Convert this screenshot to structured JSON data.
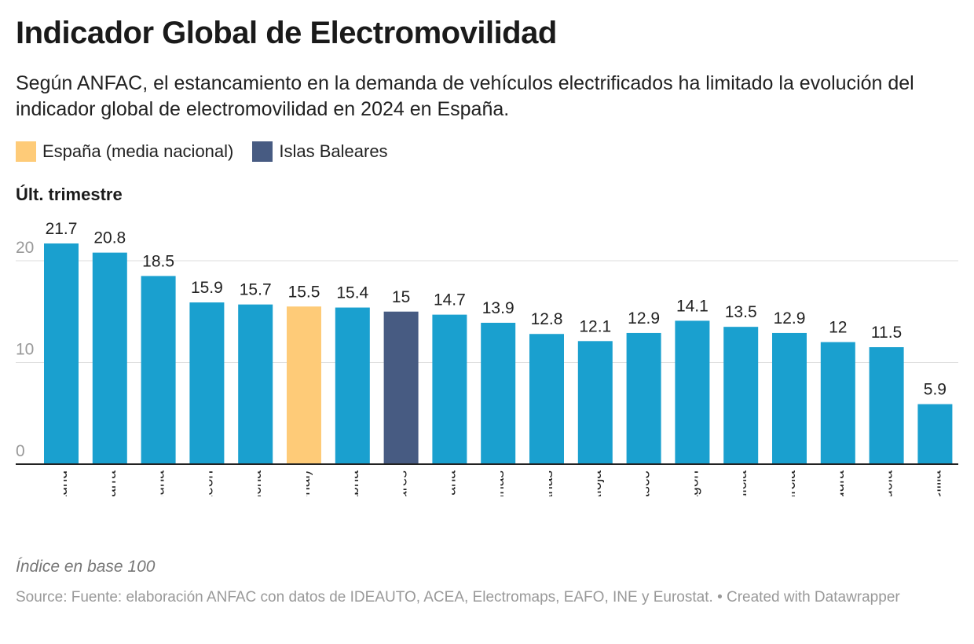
{
  "title": "Indicador Global de Electromovilidad",
  "subtitle": "Según ANFAC, el estancamiento en la demanda de vehículos electrificados ha limitado la evolución del indicador global de electromovilidad en 2024 en España.",
  "legend": [
    {
      "label": "España (media nacional)",
      "color": "#fecb78"
    },
    {
      "label": "Islas Baleares",
      "color": "#475b82"
    }
  ],
  "chart_label": "Últ. trimestre",
  "notes": "Índice en base 100",
  "footer": {
    "source": "Source: Fuente: elaboración ANFAC con datos de IDEAUTO, ACEA, Electromaps, EAFO, INE y Eurostat.",
    "credit": "• Created with Datawrapper"
  },
  "chart_data": {
    "type": "bar",
    "categories": [
      "Madrid",
      "Navarra",
      "Cataluña",
      "Castilla y León",
      "Castilla-La Mancha",
      "España (media nacional)",
      "Cantabria",
      "Islas Baleares",
      "Comunidad Valenciana",
      "Asturias",
      "Canarias",
      "La Rioja",
      "País Vasco",
      "Aragón",
      "Galicia",
      "Murcia",
      "Extremadura",
      "Andalucía",
      "Ceuta y Melilla"
    ],
    "visible_tick_labels": [
      "Madrid",
      "Navarra",
      "Cataluña",
      "a y León",
      "Mancha",
      "acional)",
      "antabria",
      "Baleares",
      "enciana",
      "Asturias",
      "Canarias",
      "La Rioja",
      "s Vasco",
      "Aragón",
      "Galicia",
      "Murcia",
      "emadura",
      "ndalucía",
      "y Melilla"
    ],
    "values": [
      21.7,
      20.8,
      18.5,
      15.9,
      15.7,
      15.5,
      15.4,
      15,
      14.7,
      13.9,
      12.8,
      12.1,
      12.9,
      14.1,
      13.5,
      12.9,
      12,
      11.5,
      5.9
    ],
    "value_labels": [
      "21.7",
      "20.8",
      "18.5",
      "15.9",
      "15.7",
      "15.5",
      "15.4",
      "15",
      "14.7",
      "13.9",
      "12.8",
      "12.1",
      "12.9",
      "14.1",
      "13.5",
      "12.9",
      "12",
      "11.5",
      "5.9"
    ],
    "colors": {
      "default": "#1aa0cf",
      "spain": "#fecb78",
      "baleares": "#475b82"
    },
    "highlight": {
      "España (media nacional)": "spain",
      "Islas Baleares": "baleares"
    },
    "ylim": [
      0,
      20
    ],
    "yticks": [
      0,
      10,
      20
    ],
    "grid": true,
    "legend_position": "top-left"
  }
}
